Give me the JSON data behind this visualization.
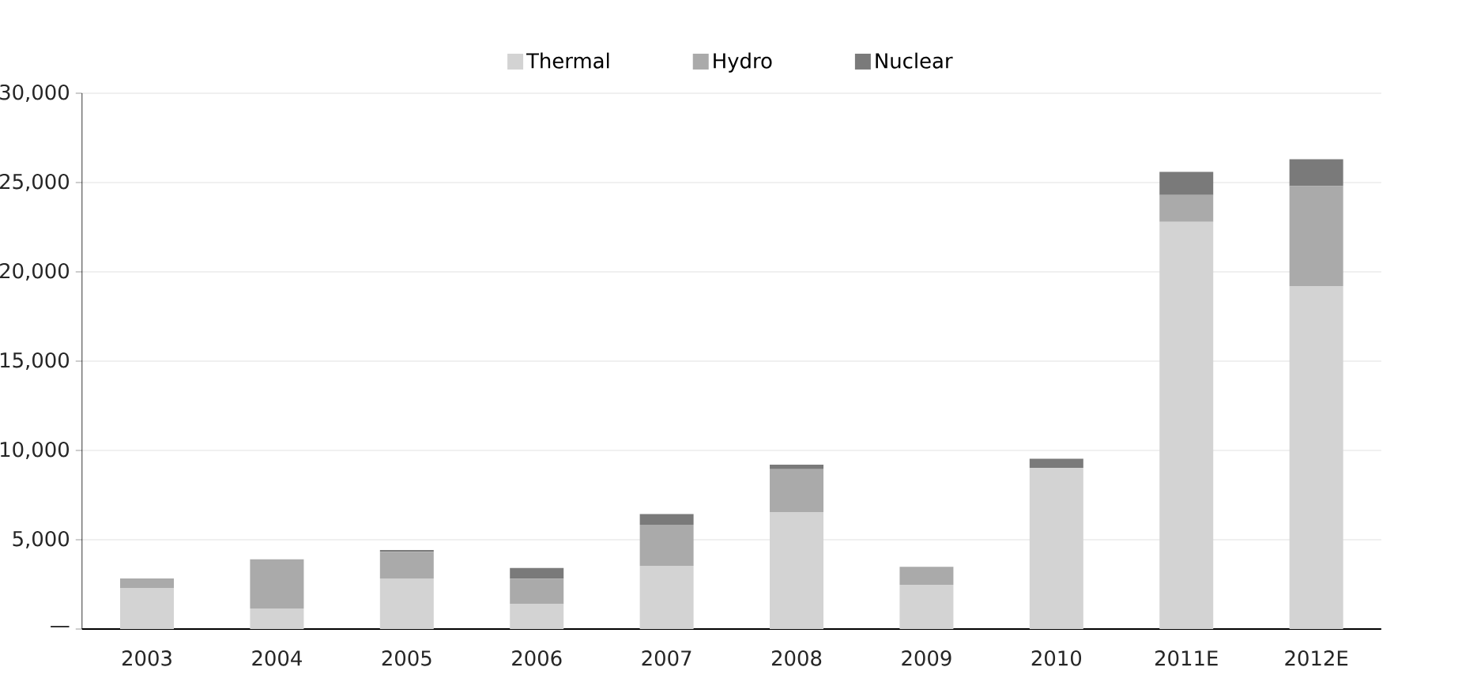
{
  "chart_data": {
    "type": "bar",
    "stacked": true,
    "categories": [
      "2003",
      "2004",
      "2005",
      "2006",
      "2007",
      "2008",
      "2009",
      "2010",
      "2011E",
      "2012E"
    ],
    "series": [
      {
        "name": "Thermal",
        "color": "#d3d3d3",
        "values": [
          2300,
          1150,
          2830,
          1420,
          3540,
          6550,
          2480,
          9030,
          22800,
          19200
        ]
      },
      {
        "name": "Hydro",
        "color": "#aaaaaa",
        "values": [
          530,
          2750,
          1500,
          1400,
          2300,
          2400,
          1000,
          null,
          1500,
          5600
        ]
      },
      {
        "name": "Nuclear",
        "color": "#7a7a7a",
        "values": [
          null,
          null,
          100,
          600,
          600,
          250,
          null,
          500,
          1300,
          1500
        ]
      }
    ],
    "ylim": [
      0,
      30000
    ],
    "yticks": [
      {
        "value": 0,
        "label": "—"
      },
      {
        "value": 5000,
        "label": "5,000"
      },
      {
        "value": 10000,
        "label": "10,000"
      },
      {
        "value": 15000,
        "label": "15,000"
      },
      {
        "value": 20000,
        "label": "20,000"
      },
      {
        "value": 25000,
        "label": "25,000"
      },
      {
        "value": 30000,
        "label": "30,000"
      }
    ],
    "grid": "y",
    "legend": "top"
  }
}
